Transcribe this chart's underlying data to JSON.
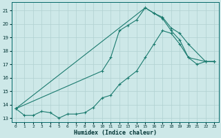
{
  "xlabel": "Humidex (Indice chaleur)",
  "bg_color": "#cde8e8",
  "grid_color": "#b0d0d0",
  "line_color": "#1a7a6e",
  "xlim": [
    -0.5,
    23.5
  ],
  "ylim": [
    12.7,
    21.6
  ],
  "xticks": [
    0,
    1,
    2,
    3,
    4,
    5,
    6,
    7,
    8,
    9,
    10,
    11,
    12,
    13,
    14,
    15,
    16,
    17,
    18,
    19,
    20,
    21,
    22,
    23
  ],
  "yticks": [
    13,
    14,
    15,
    16,
    17,
    18,
    19,
    20,
    21
  ],
  "line1_x": [
    0,
    1,
    2,
    3,
    4,
    5,
    6,
    7,
    8,
    9,
    10,
    11,
    12,
    13,
    14,
    15,
    16,
    17,
    18,
    19,
    20,
    21,
    22,
    23
  ],
  "line1_y": [
    13.7,
    13.2,
    13.2,
    13.5,
    13.4,
    13.0,
    13.3,
    13.3,
    13.4,
    13.8,
    14.5,
    14.7,
    15.5,
    16.0,
    16.5,
    17.5,
    18.5,
    19.5,
    19.3,
    18.5,
    17.5,
    17.0,
    17.2,
    17.2
  ],
  "line2_x": [
    0,
    10,
    11,
    12,
    13,
    14,
    15,
    16,
    17,
    18,
    19,
    20,
    22,
    23
  ],
  "line2_y": [
    13.7,
    16.5,
    17.5,
    19.5,
    19.9,
    20.3,
    21.2,
    20.8,
    20.4,
    19.5,
    18.8,
    17.5,
    17.2,
    17.2
  ],
  "line3_x": [
    0,
    15,
    16,
    17,
    18,
    19,
    20,
    22,
    23
  ],
  "line3_y": [
    13.7,
    21.2,
    20.8,
    20.5,
    19.7,
    19.3,
    18.5,
    17.2,
    17.2
  ]
}
